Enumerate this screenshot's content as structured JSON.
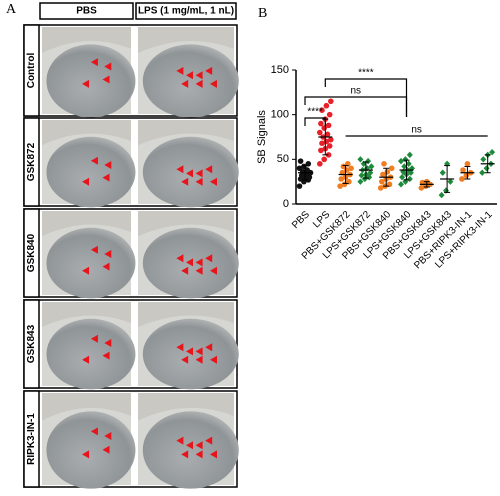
{
  "panel_a": {
    "letter": "A",
    "columns": [
      "PBS",
      "LPS (1 mg/mL, 1 nL)"
    ],
    "rows": [
      "Control",
      "GSK872",
      "GSK840",
      "GSK843",
      "RIPK3-IN-1"
    ]
  },
  "chart_data": {
    "type": "dot",
    "panel_letter": "B",
    "y_label": "SB Signals",
    "categories": [
      "PBS",
      "LPS",
      "PBS+GSK872",
      "LPS+GSK872",
      "PBS+GSK840",
      "LPS+GSK840",
      "PBS+GSK843",
      "LPS+GSK843",
      "PBS+RIPK3-IN-1",
      "LPS+RIPK3-IN-1"
    ],
    "colors": [
      "#111111",
      "#e8202a",
      "#f07d22",
      "#1e8a3c",
      "#f07d22",
      "#1e8a3c",
      "#f07d22",
      "#1e8a3c",
      "#f07d22",
      "#1e8a3c"
    ],
    "points": [
      [
        20,
        25,
        27,
        28,
        30,
        30,
        32,
        33,
        35,
        36,
        38,
        40,
        42,
        45,
        48
      ],
      [
        45,
        50,
        55,
        60,
        62,
        65,
        68,
        70,
        72,
        75,
        78,
        80,
        85,
        88,
        90,
        95,
        100,
        105,
        110,
        115
      ],
      [
        20,
        22,
        25,
        28,
        30,
        33,
        35,
        38,
        40,
        42,
        45
      ],
      [
        25,
        28,
        30,
        32,
        33,
        35,
        38,
        40,
        42,
        45,
        48,
        50
      ],
      [
        18,
        20,
        22,
        25,
        28,
        30,
        33,
        36,
        40,
        45
      ],
      [
        22,
        25,
        28,
        30,
        33,
        35,
        36,
        38,
        40,
        42,
        45,
        48,
        50,
        55
      ],
      [
        18,
        20,
        22,
        24,
        25
      ],
      [
        10,
        15,
        25,
        35,
        45
      ],
      [
        28,
        32,
        35,
        38,
        45
      ],
      [
        35,
        40,
        45,
        50,
        55,
        58
      ]
    ],
    "means": [
      35,
      75,
      33,
      38,
      30,
      38,
      22,
      28,
      35,
      45
    ],
    "errors": [
      8,
      20,
      10,
      9,
      10,
      11,
      3,
      15,
      7,
      10
    ],
    "ylim": [
      0,
      150
    ],
    "yticks": [
      0,
      50,
      100,
      150
    ],
    "annotations": [
      {
        "text": "****",
        "from": 1,
        "to": 5
      },
      {
        "text": "ns",
        "from": 0,
        "to": 5
      },
      {
        "text": "****",
        "from": 0,
        "to": 1
      },
      {
        "text": "ns",
        "from": 2,
        "to": 9
      }
    ]
  }
}
